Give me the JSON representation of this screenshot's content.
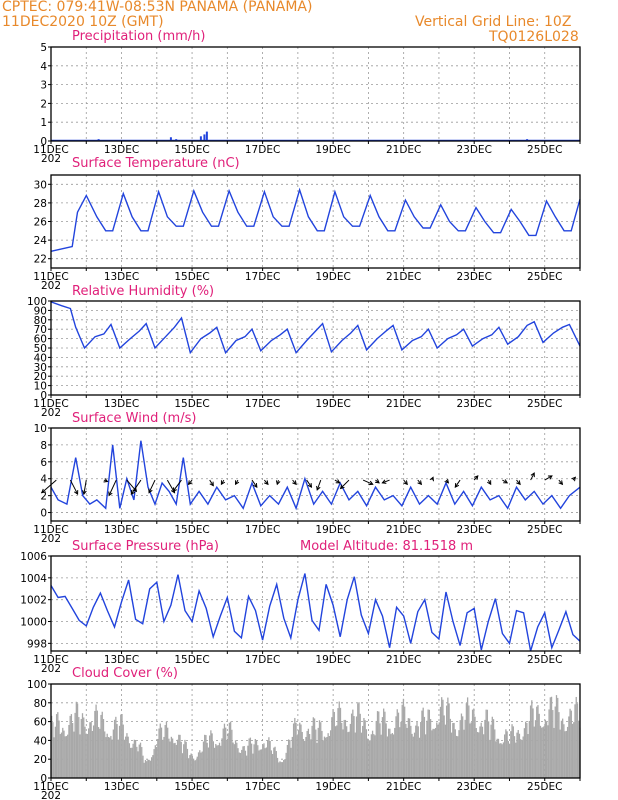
{
  "header": {
    "line1_left": "CPTEC:   079:41W-08:53N   PANAMA (PANAMA)",
    "line2_left": "11DEC2020  10Z (GMT)",
    "line1_right": "Vertical Grid Line: 10Z",
    "line2_right": "TQ0126L028"
  },
  "x_tick_labels": [
    "11DEC",
    "13DEC",
    "15DEC",
    "17DEC",
    "19DEC",
    "21DEC",
    "23DEC",
    "25DEC"
  ],
  "year_stub": "202",
  "colors": {
    "header": "#e8892b",
    "title": "#e0207a",
    "series": "#2244dd",
    "cloud": "#a8a8a8",
    "wind_arrow": "#000000"
  },
  "chart_data": [
    {
      "type": "bar",
      "title": "Precipitation (mm/h)",
      "xlabel": "",
      "ylabel": "",
      "ylim": [
        0,
        5
      ],
      "yticks": [
        0,
        1,
        2,
        3,
        4,
        5
      ],
      "x_days": [
        11,
        26
      ],
      "grid": true,
      "x": [
        12.35,
        14.4,
        14.55,
        15.25,
        15.35,
        15.42,
        18.8,
        24.5
      ],
      "values": [
        0.1,
        0.2,
        0.1,
        0.25,
        0.35,
        0.5,
        0.05,
        0.1
      ]
    },
    {
      "type": "line",
      "title": "Surface Temperature (nC)",
      "xlabel": "",
      "ylabel": "",
      "ylim": [
        21,
        31
      ],
      "yticks": [
        22,
        24,
        26,
        28,
        30
      ],
      "grid": true,
      "x": [
        11.0,
        11.6,
        11.75,
        12.0,
        12.3,
        12.55,
        12.75,
        13.05,
        13.3,
        13.55,
        13.75,
        14.05,
        14.3,
        14.55,
        14.75,
        15.05,
        15.3,
        15.55,
        15.75,
        16.05,
        16.3,
        16.55,
        16.75,
        17.05,
        17.3,
        17.55,
        17.75,
        18.05,
        18.3,
        18.55,
        18.75,
        19.05,
        19.3,
        19.55,
        19.75,
        20.05,
        20.3,
        20.55,
        20.75,
        21.05,
        21.3,
        21.55,
        21.75,
        22.05,
        22.3,
        22.55,
        22.75,
        23.05,
        23.3,
        23.55,
        23.75,
        24.05,
        24.3,
        24.55,
        24.75,
        25.05,
        25.3,
        25.55,
        25.75,
        26.0
      ],
      "values": [
        22.8,
        23.3,
        27.0,
        28.8,
        26.5,
        25.0,
        25.0,
        29.0,
        26.5,
        25.0,
        25.0,
        29.2,
        26.5,
        25.5,
        25.5,
        29.3,
        27.0,
        25.5,
        25.5,
        29.3,
        27.0,
        25.5,
        25.5,
        29.2,
        26.5,
        25.5,
        25.5,
        29.4,
        26.5,
        25.0,
        25.0,
        29.2,
        26.5,
        25.5,
        25.5,
        28.8,
        26.5,
        25.0,
        25.0,
        28.3,
        26.5,
        25.3,
        25.3,
        27.8,
        26.0,
        25.0,
        25.0,
        27.5,
        26.0,
        24.8,
        24.8,
        27.3,
        26.0,
        24.5,
        24.5,
        28.2,
        26.5,
        25.0,
        25.0,
        28.4
      ]
    },
    {
      "type": "line",
      "title": "Relative Humidity (%)",
      "xlabel": "",
      "ylabel": "",
      "ylim": [
        0,
        100
      ],
      "yticks": [
        0,
        10,
        20,
        30,
        40,
        50,
        60,
        70,
        80,
        90,
        100
      ],
      "grid": true,
      "x": [
        11.0,
        11.3,
        11.55,
        11.7,
        11.95,
        12.25,
        12.5,
        12.7,
        12.95,
        13.25,
        13.5,
        13.7,
        13.95,
        14.25,
        14.5,
        14.7,
        14.95,
        15.25,
        15.5,
        15.7,
        15.95,
        16.25,
        16.5,
        16.7,
        16.95,
        17.25,
        17.5,
        17.7,
        17.95,
        18.25,
        18.5,
        18.7,
        18.95,
        19.25,
        19.5,
        19.7,
        19.95,
        20.25,
        20.5,
        20.7,
        20.95,
        21.25,
        21.5,
        21.7,
        21.95,
        22.25,
        22.5,
        22.7,
        22.95,
        23.25,
        23.5,
        23.7,
        23.95,
        24.25,
        24.5,
        24.7,
        24.95,
        25.25,
        25.5,
        25.7,
        26.0
      ],
      "values": [
        99,
        95,
        92,
        72,
        50,
        62,
        65,
        75,
        50,
        60,
        68,
        76,
        50,
        62,
        72,
        82,
        45,
        60,
        66,
        72,
        45,
        58,
        62,
        70,
        47,
        58,
        64,
        70,
        45,
        58,
        68,
        76,
        46,
        58,
        66,
        74,
        48,
        60,
        68,
        74,
        48,
        58,
        62,
        70,
        50,
        60,
        64,
        70,
        52,
        60,
        64,
        72,
        54,
        62,
        74,
        78,
        56,
        66,
        72,
        75,
        52
      ]
    },
    {
      "type": "line",
      "title": "Surface Wind (m/s)",
      "xlabel": "",
      "ylabel": "",
      "ylim": [
        -1,
        10
      ],
      "yticks": [
        0,
        2,
        4,
        6,
        8,
        10
      ],
      "grid": true,
      "x": [
        11.0,
        11.2,
        11.45,
        11.7,
        11.9,
        12.1,
        12.3,
        12.55,
        12.75,
        12.95,
        13.15,
        13.35,
        13.55,
        13.75,
        13.95,
        14.15,
        14.35,
        14.55,
        14.75,
        14.95,
        15.2,
        15.45,
        15.7,
        15.95,
        16.2,
        16.45,
        16.7,
        16.95,
        17.2,
        17.45,
        17.7,
        17.95,
        18.2,
        18.45,
        18.7,
        18.95,
        19.2,
        19.45,
        19.7,
        19.95,
        20.2,
        20.45,
        20.7,
        20.95,
        21.2,
        21.45,
        21.7,
        21.95,
        22.2,
        22.45,
        22.7,
        22.95,
        23.2,
        23.45,
        23.7,
        23.95,
        24.2,
        24.45,
        24.7,
        24.95,
        25.2,
        25.45,
        25.7,
        26.0
      ],
      "values": [
        3.0,
        1.5,
        1.0,
        6.5,
        2.0,
        1.0,
        1.5,
        0.5,
        8.0,
        0.5,
        4.0,
        1.5,
        8.5,
        3.0,
        1.0,
        3.5,
        2.5,
        1.0,
        6.5,
        1.0,
        2.5,
        1.0,
        3.0,
        1.5,
        2.0,
        0.5,
        3.5,
        0.8,
        2.0,
        1.0,
        3.0,
        0.5,
        4.0,
        1.0,
        2.5,
        1.0,
        3.5,
        1.5,
        2.5,
        0.8,
        3.0,
        1.5,
        2.0,
        0.8,
        3.0,
        1.0,
        2.0,
        1.0,
        3.5,
        1.0,
        2.5,
        0.8,
        3.0,
        1.5,
        2.0,
        0.5,
        3.0,
        1.5,
        2.5,
        1.0,
        2.0,
        0.5,
        2.0,
        3.0
      ],
      "arrows_x": [
        11.15,
        11.55,
        12.0,
        12.5,
        12.85,
        13.15,
        13.55,
        13.95,
        14.3,
        14.7,
        15.0,
        15.5,
        15.9,
        16.3,
        16.7,
        17.05,
        17.45,
        17.85,
        18.25,
        18.65,
        19.05,
        19.45,
        19.85,
        20.2,
        20.6,
        21.0,
        21.4,
        21.8,
        22.2,
        22.6,
        23.0,
        23.4,
        23.8,
        24.2,
        24.6,
        25.0,
        25.4,
        25.8
      ],
      "arrows_u": [
        -1.2,
        0.6,
        -0.2,
        0.3,
        -0.6,
        0.8,
        -0.8,
        -0.5,
        0.6,
        -0.7,
        -0.3,
        0.3,
        -0.2,
        -0.2,
        0.4,
        0.3,
        -0.1,
        0.3,
        0.4,
        -0.3,
        0.4,
        -0.7,
        0.8,
        0.3,
        -0.6,
        0.3,
        0.3,
        0.1,
        0.2,
        -0.4,
        0.3,
        0.2,
        0.4,
        0.3,
        0.3,
        0.6,
        0.3,
        0.2
      ],
      "arrows_v": [
        -0.9,
        -1.0,
        -1.0,
        -0.1,
        -1.1,
        -0.8,
        -1.0,
        -0.9,
        -0.9,
        -0.8,
        -0.3,
        -0.4,
        -0.3,
        -0.3,
        -0.5,
        -0.3,
        -0.3,
        -0.3,
        -0.5,
        -0.7,
        -0.2,
        -0.6,
        -0.3,
        -0.2,
        -0.2,
        -0.3,
        -0.3,
        0.2,
        -0.2,
        -0.5,
        0.3,
        -0.3,
        -0.2,
        -0.3,
        0.5,
        0.3,
        -0.3,
        0.2
      ]
    },
    {
      "type": "line",
      "title": "Surface Pressure (hPa)",
      "annotation": "Model Altitude: 81.1518 m",
      "xlabel": "",
      "ylabel": "",
      "ylim": [
        997.3,
        1006
      ],
      "yticks": [
        998,
        1000,
        1002,
        1004,
        1006
      ],
      "grid": true,
      "x": [
        11.0,
        11.2,
        11.4,
        11.6,
        11.8,
        12.0,
        12.2,
        12.4,
        12.6,
        12.8,
        13.0,
        13.2,
        13.4,
        13.6,
        13.8,
        14.0,
        14.2,
        14.4,
        14.6,
        14.8,
        15.0,
        15.2,
        15.4,
        15.6,
        15.8,
        16.0,
        16.2,
        16.4,
        16.6,
        16.8,
        17.0,
        17.2,
        17.4,
        17.6,
        17.8,
        18.0,
        18.2,
        18.4,
        18.6,
        18.8,
        19.0,
        19.2,
        19.4,
        19.6,
        19.8,
        20.0,
        20.2,
        20.4,
        20.6,
        20.8,
        21.0,
        21.2,
        21.4,
        21.6,
        21.8,
        22.0,
        22.2,
        22.4,
        22.6,
        22.8,
        23.0,
        23.2,
        23.4,
        23.6,
        23.8,
        24.0,
        24.2,
        24.4,
        24.6,
        24.8,
        25.0,
        25.2,
        25.4,
        25.6,
        25.8,
        26.0
      ],
      "values": [
        1003.3,
        1002.2,
        1002.3,
        1001.2,
        1000.1,
        999.6,
        1001.3,
        1002.6,
        1001.0,
        999.5,
        1001.8,
        1003.8,
        1000.2,
        999.8,
        1003.0,
        1003.6,
        1000.0,
        1001.5,
        1004.3,
        1001.0,
        1000.0,
        1002.8,
        1001.2,
        998.6,
        1000.5,
        1002.2,
        999.1,
        998.5,
        1002.3,
        1001.0,
        998.3,
        1001.4,
        1003.4,
        1000.3,
        998.5,
        1002.0,
        1004.4,
        1000.1,
        999.2,
        1003.4,
        1001.5,
        998.6,
        1002.0,
        1004.1,
        1000.6,
        998.9,
        1002.0,
        1000.5,
        997.6,
        1001.3,
        1000.5,
        998.0,
        1000.9,
        1002.0,
        999.0,
        998.4,
        1002.7,
        1000.0,
        997.8,
        1000.8,
        1001.2,
        997.4,
        1000.0,
        1002.1,
        998.9,
        998.0,
        1001.0,
        1000.8,
        997.0,
        999.5,
        1000.8,
        997.6,
        999.2,
        1000.9,
        998.8,
        998.2
      ]
    },
    {
      "type": "bar",
      "title": "Cloud Cover (%)",
      "xlabel": "",
      "ylabel": "",
      "ylim": [
        0,
        100
      ],
      "yticks": [
        0,
        20,
        40,
        60,
        80,
        100
      ],
      "grid": true,
      "x": [
        11.0,
        11.5,
        12.0,
        12.5,
        13.0,
        13.4,
        13.7,
        14.0,
        14.5,
        14.8,
        15.0,
        15.5,
        16.0,
        16.5,
        17.0,
        17.5,
        18.0,
        18.5,
        19.0,
        19.5,
        20.0,
        20.5,
        21.0,
        21.5,
        22.0,
        22.5,
        23.0,
        23.5,
        24.0,
        24.5,
        25.0,
        25.5,
        26.0
      ],
      "values": [
        70,
        80,
        85,
        75,
        70,
        50,
        20,
        60,
        65,
        40,
        30,
        55,
        65,
        40,
        55,
        25,
        75,
        65,
        80,
        90,
        70,
        80,
        85,
        75,
        95,
        80,
        90,
        70,
        55,
        80,
        95,
        90,
        85
      ]
    }
  ]
}
